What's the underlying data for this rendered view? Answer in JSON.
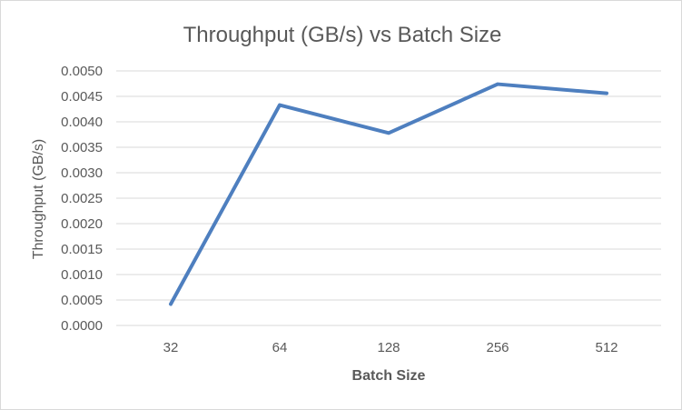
{
  "chart_data": {
    "type": "line",
    "title": "Throughput (GB/s) vs Batch Size",
    "xlabel": "Batch Size",
    "ylabel": "Throughput (GB/s)",
    "categories": [
      "32",
      "64",
      "128",
      "256",
      "512"
    ],
    "series": [
      {
        "values": [
          0.00042,
          0.00433,
          0.00378,
          0.00474,
          0.00456
        ]
      }
    ],
    "ylim": [
      0,
      0.005
    ],
    "yticks": [
      "0.0000",
      "0.0005",
      "0.0010",
      "0.0015",
      "0.0020",
      "0.0025",
      "0.0030",
      "0.0035",
      "0.0040",
      "0.0045",
      "0.0050"
    ],
    "grid": true,
    "legend": "none",
    "colors": {
      "series": "#4e7fbf",
      "grid": "#d9d9d9",
      "text": "#595959",
      "border": "#d9d9d9"
    }
  }
}
